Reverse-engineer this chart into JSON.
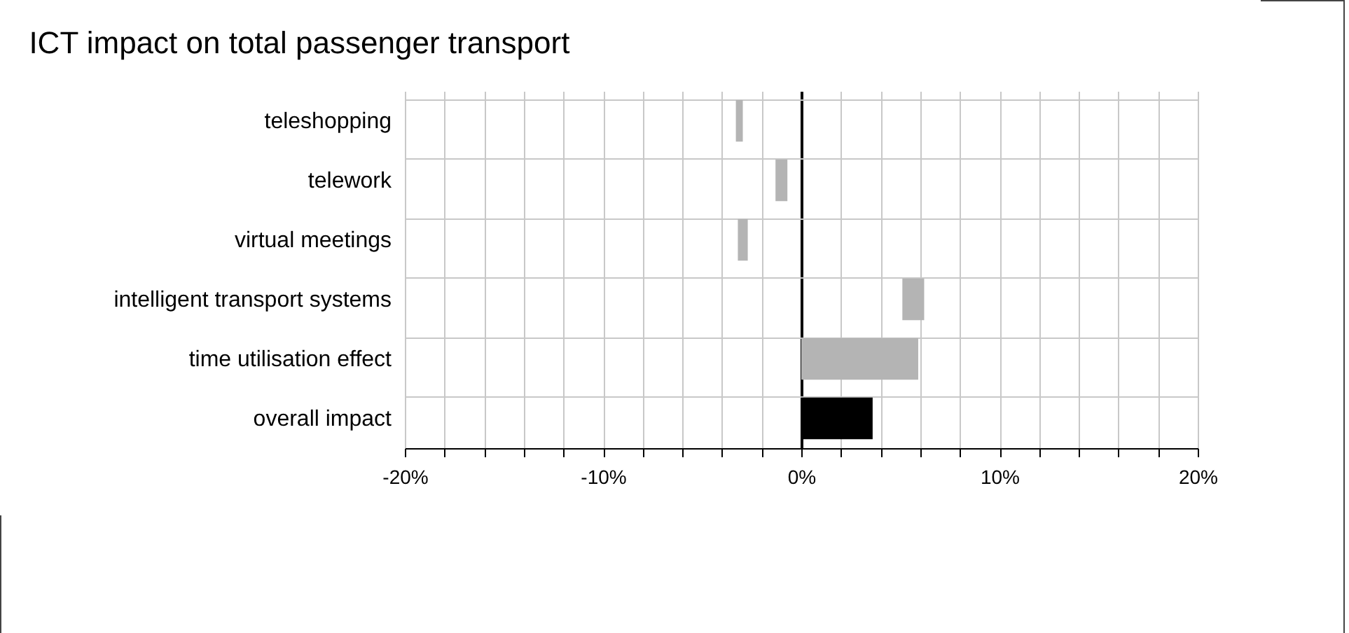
{
  "chart_data": {
    "type": "bar",
    "orientation": "horizontal",
    "title": "ICT impact on total passenger transport",
    "categories": [
      "teleshopping",
      "telework",
      "virtual meetings",
      "intelligent transport systems",
      "time utilisation effect",
      "overall impact"
    ],
    "base": [
      -3.3,
      -1.3,
      -3.2,
      5.1,
      0,
      0
    ],
    "values": [
      0.35,
      0.6,
      0.5,
      1.1,
      5.9,
      3.6
    ],
    "colors": [
      "#b4b4b4",
      "#b4b4b4",
      "#b4b4b4",
      "#b4b4b4",
      "#b4b4b4",
      "#000000"
    ],
    "xlim": [
      -20,
      20
    ],
    "xticks": [
      {
        "value": -20,
        "label": "-20%"
      },
      {
        "value": -18,
        "label": null
      },
      {
        "value": -16,
        "label": null
      },
      {
        "value": -14,
        "label": null
      },
      {
        "value": -12,
        "label": null
      },
      {
        "value": -10,
        "label": "-10%"
      },
      {
        "value": -8,
        "label": null
      },
      {
        "value": -6,
        "label": null
      },
      {
        "value": -4,
        "label": null
      },
      {
        "value": -2,
        "label": null
      },
      {
        "value": 0,
        "label": "0%"
      },
      {
        "value": 2,
        "label": null
      },
      {
        "value": 4,
        "label": null
      },
      {
        "value": 6,
        "label": null
      },
      {
        "value": 8,
        "label": null
      },
      {
        "value": 10,
        "label": "10%"
      },
      {
        "value": 12,
        "label": null
      },
      {
        "value": 14,
        "label": null
      },
      {
        "value": 16,
        "label": null
      },
      {
        "value": 18,
        "label": null
      },
      {
        "value": 20,
        "label": "20%"
      }
    ],
    "grid": true
  }
}
